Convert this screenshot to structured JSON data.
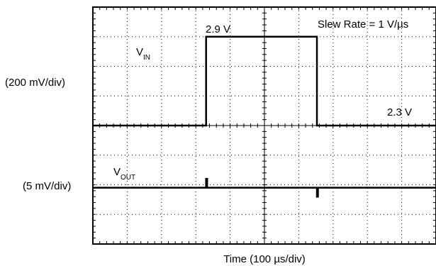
{
  "chart_data": {
    "type": "line",
    "xlabel": "Time (100 µs/div)",
    "x_divisions": 10,
    "grid": true,
    "channels": [
      {
        "name": "VIN",
        "label_main": "V",
        "label_sub": "IN",
        "scale": "(200 mV/div)",
        "x": [
          0,
          3.3,
          3.3,
          6.53,
          6.53,
          10
        ],
        "y": [
          2.3,
          2.3,
          2.9,
          2.9,
          2.3,
          2.3
        ],
        "annotations": [
          {
            "text": "2.9 V"
          },
          {
            "text": "2.3 V"
          }
        ]
      },
      {
        "name": "VOUT",
        "label_main": "V",
        "label_sub": "OUT",
        "scale": "(5 mV/div)",
        "x": [
          0,
          3.3,
          3.3,
          3.33,
          3.33,
          6.53,
          6.53,
          6.56,
          6.56,
          10
        ],
        "y": [
          0,
          0,
          0.3,
          0.3,
          0,
          0,
          -0.3,
          -0.3,
          0,
          0
        ],
        "y_units": "div"
      }
    ],
    "annotation": "Slew Rate = 1 V/µs"
  }
}
